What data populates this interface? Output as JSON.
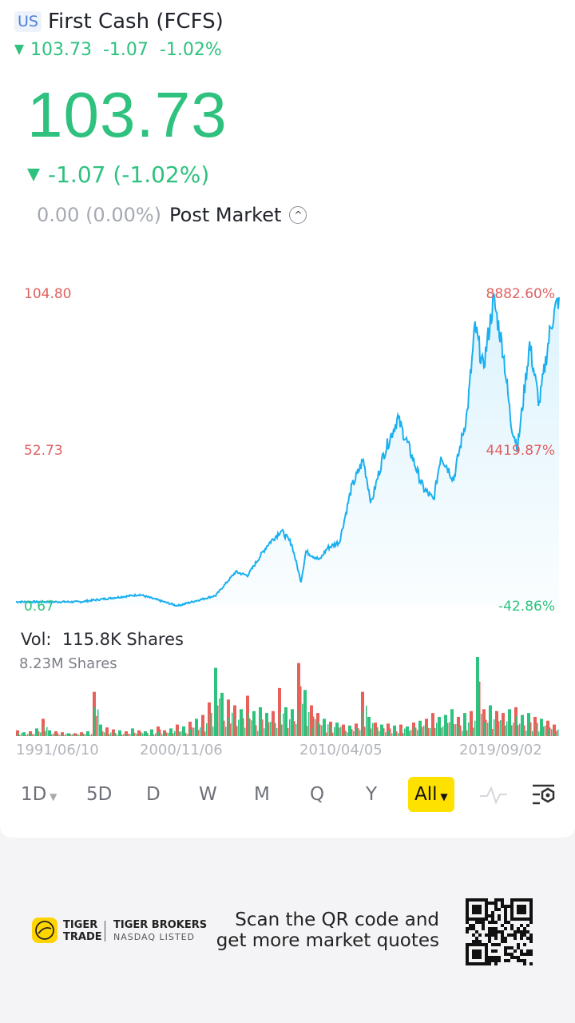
{
  "header": {
    "market_badge": "US",
    "title": "First Cash (FCFS)",
    "price": "103.73",
    "change": "-1.07",
    "change_pct": "-1.02%"
  },
  "quote": {
    "price": "103.73",
    "change_text": "-1.07 (-1.02%)",
    "post_market_value": "0.00 (0.00%)",
    "post_market_label": "Post Market"
  },
  "colors": {
    "up": "#2ec27e",
    "down": "#e8605a",
    "line": "#1ab0f0",
    "accent": "#ffe100"
  },
  "volume": {
    "label": "Vol:",
    "value": "115.8K Shares",
    "max_label": "8.23M Shares"
  },
  "periods": [
    "1D",
    "5D",
    "D",
    "W",
    "M",
    "Q",
    "Y",
    "All"
  ],
  "active_period": "All",
  "footer": {
    "brand1_line1": "TIGER",
    "brand1_line2": "TRADE",
    "brand2_line1": "TIGER BROKERS",
    "brand2_line2": "NASDAQ LISTED",
    "scan_line1": "Scan the QR code and",
    "scan_line2": "get more market quotes"
  },
  "chart_data": {
    "type": "line",
    "title": "First Cash (FCFS) All",
    "y_left_labels": [
      "104.80",
      "52.73",
      "0.67"
    ],
    "y_right_labels": [
      "8882.60%",
      "4419.87%",
      "-42.86%"
    ],
    "ylim": [
      0.67,
      104.8
    ],
    "x_ticks": [
      {
        "year": 1991.44,
        "label": "1991/06/10"
      },
      {
        "year": 2000.85,
        "label": "2000/11/06"
      },
      {
        "year": 2010.26,
        "label": "2010/04/05"
      },
      {
        "year": 2019.67,
        "label": "2019/09/02"
      }
    ],
    "xlim": [
      1991.44,
      2023.0
    ],
    "price": [
      [
        1991.44,
        2
      ],
      [
        1996.3,
        2
      ],
      [
        2000.85,
        4.4
      ],
      [
        2003.06,
        0.67
      ],
      [
        2005.32,
        4.1
      ],
      [
        2006.5,
        12
      ],
      [
        2007.2,
        10.8
      ],
      [
        2008.38,
        21
      ],
      [
        2009.18,
        25.8
      ],
      [
        2009.79,
        21.5
      ],
      [
        2010.35,
        8.7
      ],
      [
        2010.64,
        18.8
      ],
      [
        2011.44,
        16
      ],
      [
        2011.91,
        20
      ],
      [
        2012.61,
        22
      ],
      [
        2013.32,
        40
      ],
      [
        2014.02,
        49.5
      ],
      [
        2014.49,
        35
      ],
      [
        2015.2,
        51
      ],
      [
        2016.05,
        63.4
      ],
      [
        2016.61,
        55
      ],
      [
        2017.55,
        40
      ],
      [
        2018.16,
        36
      ],
      [
        2018.59,
        51
      ],
      [
        2019.34,
        43
      ],
      [
        2019.94,
        65.5
      ],
      [
        2020.2,
        94
      ],
      [
        2020.47,
        80
      ],
      [
        2020.82,
        103
      ],
      [
        2021.14,
        85.6
      ],
      [
        2021.4,
        61.6
      ],
      [
        2021.62,
        53.5
      ],
      [
        2022.02,
        88
      ],
      [
        2022.34,
        68
      ],
      [
        2022.74,
        95
      ],
      [
        2023.0,
        103.73
      ]
    ],
    "volume_max_m": 8.23,
    "volume_m": [
      0.6,
      0.4,
      0.5,
      0.8,
      1.8,
      0.6,
      0.5,
      0.4,
      0.3,
      0.3,
      0.4,
      0.5,
      4.6,
      1.2,
      0.9,
      0.7,
      0.6,
      0.5,
      0.8,
      0.6,
      0.5,
      0.7,
      1.0,
      0.6,
      0.8,
      1.2,
      1.0,
      1.5,
      1.8,
      2.2,
      3.5,
      7.1,
      4.5,
      3.8,
      3.2,
      2.8,
      4.2,
      2.6,
      3.0,
      2.4,
      2.6,
      5.0,
      3.0,
      2.8,
      7.6,
      4.8,
      3.2,
      2.4,
      1.8,
      1.5,
      1.4,
      1.2,
      1.1,
      1.3,
      4.6,
      2.0,
      1.4,
      1.2,
      1.3,
      1.1,
      1.2,
      1.0,
      1.4,
      1.6,
      1.8,
      2.4,
      2.0,
      2.2,
      2.8,
      2.0,
      2.4,
      2.6,
      8.23,
      2.8,
      3.2,
      2.6,
      2.4,
      2.8,
      3.0,
      2.2,
      2.4,
      2.0,
      1.8,
      1.6,
      1.2
    ],
    "volume_dir": "rgrgrgrrgrrgrgrrgrgrggrrgrgrgrrggrrgrgggrrggrgrrgrgrgrrgrgrgrgrgrrgggrgrgrgrrgrggrgrr"
  }
}
